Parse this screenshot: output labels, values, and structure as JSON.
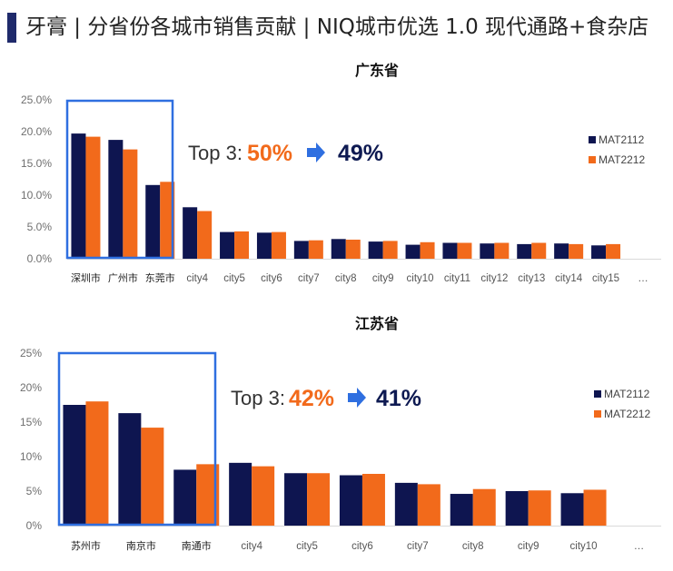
{
  "page": {
    "title": "牙膏 | 分省份各城市销售贡献 | NIQ城市优选 1.0 现代通路+食杂店"
  },
  "colors": {
    "series1": "#0e1550",
    "series2": "#f26a1b",
    "highlight_box": "#2f6fe0",
    "arrow": "#2f6fe0"
  },
  "chart_data": [
    {
      "type": "bar",
      "title": "广东省",
      "categories": [
        "深圳市",
        "广州市",
        "东莞市",
        "city4",
        "city5",
        "city6",
        "city7",
        "city8",
        "city9",
        "city10",
        "city11",
        "city12",
        "city13",
        "city14",
        "city15",
        "…"
      ],
      "highlight_count": 3,
      "series": [
        {
          "name": "MAT2112",
          "values": [
            19.7,
            18.7,
            11.6,
            8.1,
            4.2,
            4.1,
            2.8,
            3.1,
            2.7,
            2.2,
            2.5,
            2.4,
            2.3,
            2.4,
            2.1,
            null
          ]
        },
        {
          "name": "MAT2212",
          "values": [
            19.2,
            17.2,
            12.1,
            7.5,
            4.3,
            4.2,
            2.9,
            3.0,
            2.8,
            2.6,
            2.5,
            2.5,
            2.5,
            2.3,
            2.3,
            null
          ]
        }
      ],
      "yticks": [
        "0.0%",
        "5.0%",
        "10.0%",
        "15.0%",
        "20.0%",
        "25.0%"
      ],
      "ylim": [
        0,
        25
      ],
      "top3": {
        "label": "Top 3:",
        "before": "50%",
        "after": "49%"
      },
      "legend": [
        "MAT2112",
        "MAT2212"
      ]
    },
    {
      "type": "bar",
      "title": "江苏省",
      "categories": [
        "苏州市",
        "南京市",
        "南通市",
        "city4",
        "city5",
        "city6",
        "city7",
        "city8",
        "city9",
        "city10",
        "…"
      ],
      "highlight_count": 3,
      "series": [
        {
          "name": "MAT2112",
          "values": [
            17.5,
            16.3,
            8.1,
            9.1,
            7.6,
            7.3,
            6.2,
            4.6,
            5.0,
            4.7,
            null
          ]
        },
        {
          "name": "MAT2212",
          "values": [
            18.0,
            14.2,
            8.9,
            8.6,
            7.6,
            7.5,
            6.0,
            5.3,
            5.1,
            5.2,
            null
          ]
        }
      ],
      "yticks": [
        "0%",
        "5%",
        "10%",
        "15%",
        "20%",
        "25%"
      ],
      "ylim": [
        0,
        25
      ],
      "top3": {
        "label": "Top 3:",
        "before": "42%",
        "after": "41%"
      },
      "legend": [
        "MAT2112",
        "MAT2212"
      ]
    }
  ]
}
